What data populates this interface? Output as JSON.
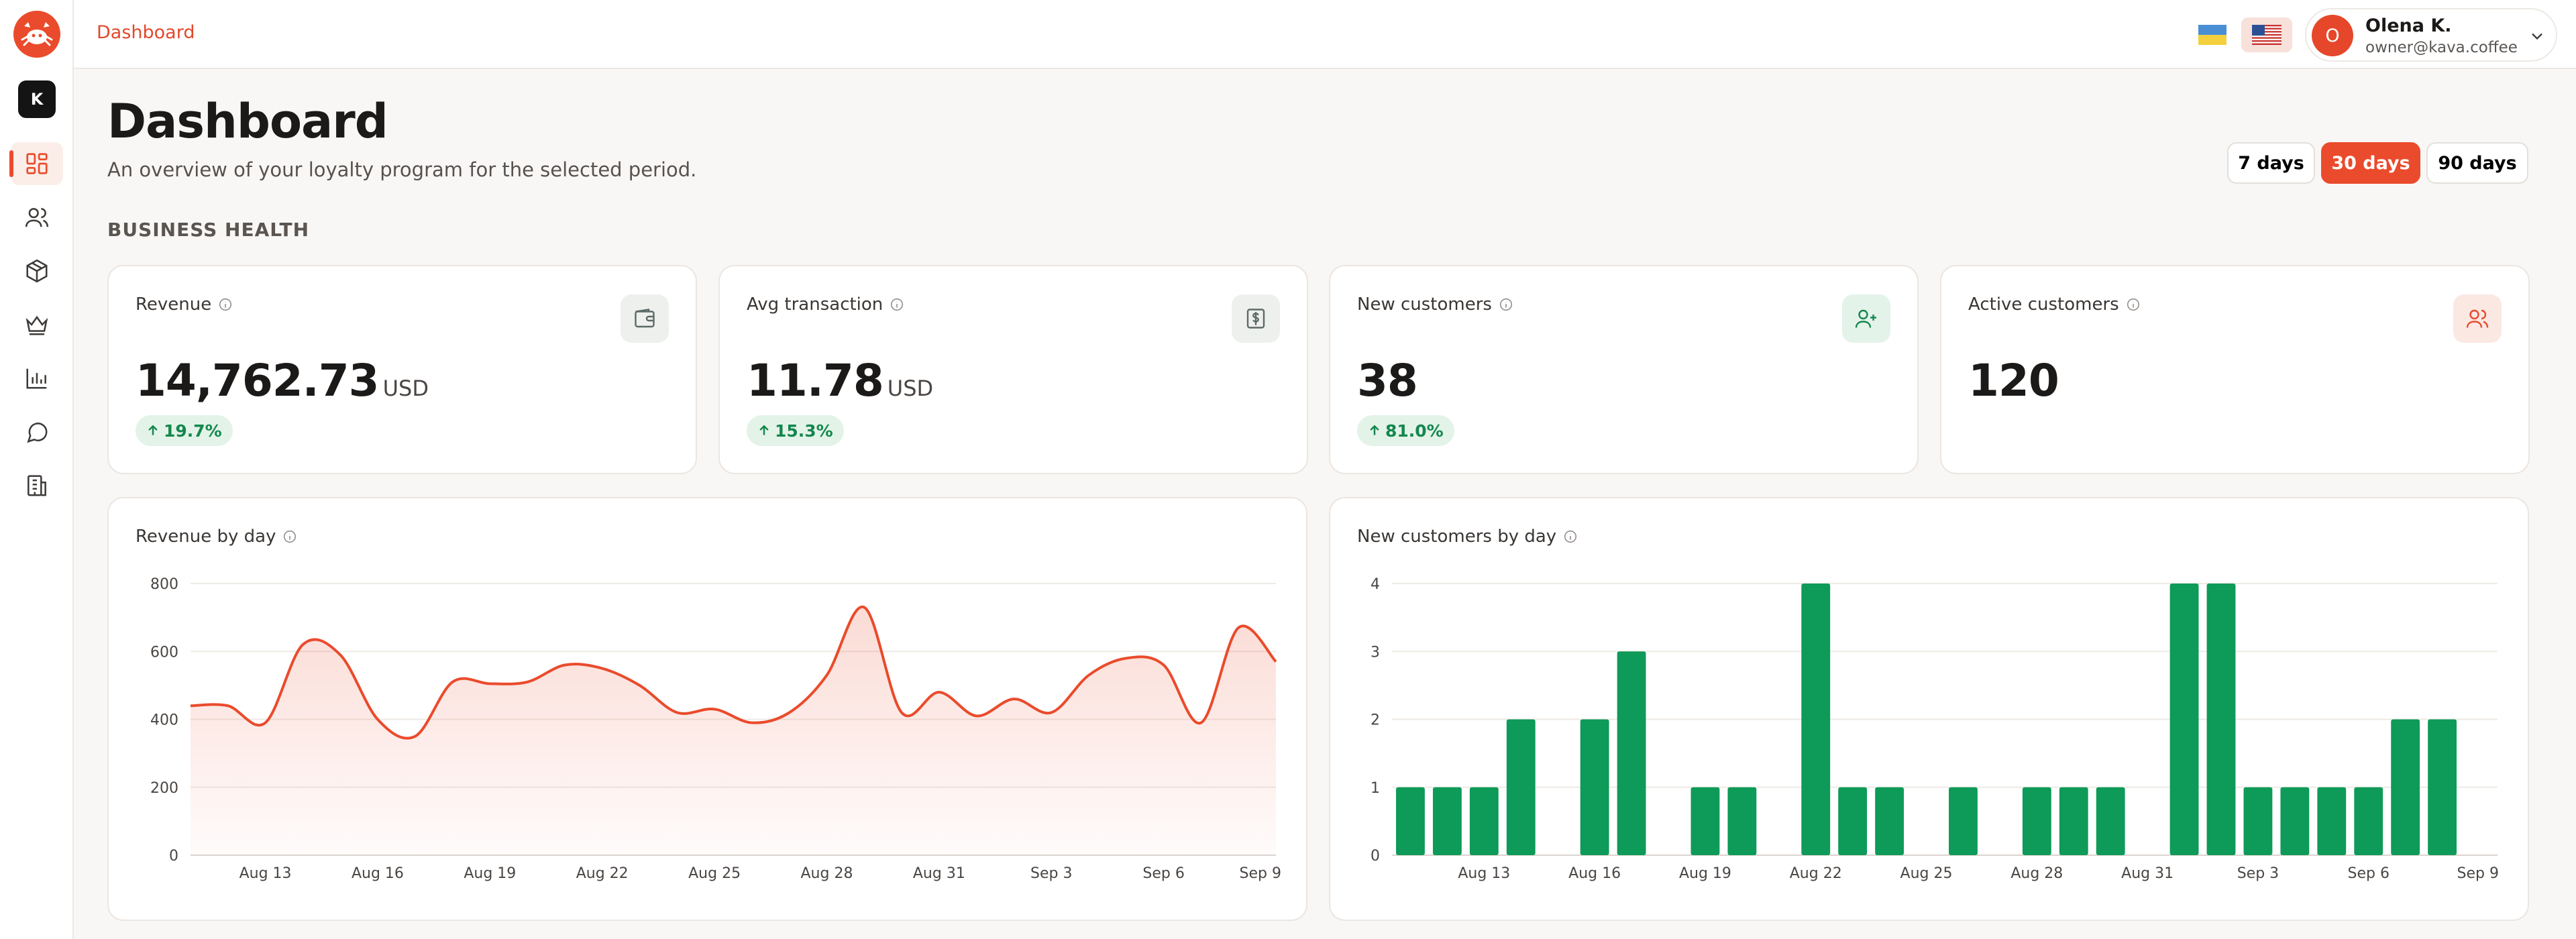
{
  "app": {
    "breadcrumb": "Dashboard"
  },
  "user": {
    "initial": "O",
    "name": "Olena K.",
    "email": "owner@kava.coffee"
  },
  "workspace": {
    "initial": "K"
  },
  "sidebar": {
    "items": [
      {
        "name": "dashboard",
        "icon": "dashboard-icon",
        "active": true
      },
      {
        "name": "customers",
        "icon": "users-icon"
      },
      {
        "name": "products",
        "icon": "box-icon"
      },
      {
        "name": "loyalty",
        "icon": "crown-icon"
      },
      {
        "name": "analytics",
        "icon": "bar-chart-icon"
      },
      {
        "name": "messages",
        "icon": "chat-icon"
      },
      {
        "name": "locations",
        "icon": "building-icon"
      }
    ]
  },
  "header": {
    "title": "Dashboard",
    "subtitle": "An overview of your loyalty program for the selected period.",
    "ranges": [
      "7 days",
      "30 days",
      "90 days"
    ],
    "active_range": "30 days"
  },
  "section": {
    "title": "BUSINESS HEALTH"
  },
  "kpis": [
    {
      "label": "Revenue",
      "value": "14,762.73",
      "unit": "USD",
      "delta": "19.7%",
      "icon": "wallet-icon"
    },
    {
      "label": "Avg transaction",
      "value": "11.78",
      "unit": "USD",
      "delta": "15.3%",
      "icon": "receipt-icon"
    },
    {
      "label": "New customers",
      "value": "38",
      "unit": "",
      "delta": "81.0%",
      "icon": "user-plus-icon"
    },
    {
      "label": "Active customers",
      "value": "120",
      "unit": "",
      "delta": "",
      "icon": "users-icon"
    }
  ],
  "colors": {
    "accent": "#ea4b2c",
    "positive": "#14874e",
    "bar": "#0e9a58"
  },
  "chart_data": [
    {
      "type": "area",
      "title": "Revenue by day",
      "x": [
        "Aug 11",
        "Aug 12",
        "Aug 13",
        "Aug 14",
        "Aug 15",
        "Aug 16",
        "Aug 17",
        "Aug 18",
        "Aug 19",
        "Aug 20",
        "Aug 21",
        "Aug 22",
        "Aug 23",
        "Aug 24",
        "Aug 25",
        "Aug 26",
        "Aug 27",
        "Aug 28",
        "Aug 29",
        "Aug 30",
        "Aug 31",
        "Sep 1",
        "Sep 2",
        "Sep 3",
        "Sep 4",
        "Sep 5",
        "Sep 6",
        "Sep 7",
        "Sep 8",
        "Sep 9"
      ],
      "values": [
        440,
        440,
        390,
        620,
        590,
        400,
        350,
        510,
        505,
        510,
        560,
        550,
        500,
        420,
        430,
        390,
        420,
        530,
        730,
        420,
        480,
        410,
        460,
        420,
        530,
        580,
        560,
        390,
        670,
        570
      ],
      "ylim": [
        0,
        800
      ],
      "yticks": [
        0,
        200,
        400,
        600,
        800
      ],
      "xticks": [
        "Aug 13",
        "Aug 16",
        "Aug 19",
        "Aug 22",
        "Aug 25",
        "Aug 28",
        "Aug 31",
        "Sep 3",
        "Sep 6",
        "Sep 9"
      ],
      "grid": true
    },
    {
      "type": "bar",
      "title": "New customers by day",
      "categories": [
        "Aug 11",
        "Aug 12",
        "Aug 13",
        "Aug 14",
        "Aug 15",
        "Aug 16",
        "Aug 17",
        "Aug 18",
        "Aug 19",
        "Aug 20",
        "Aug 21",
        "Aug 22",
        "Aug 23",
        "Aug 24",
        "Aug 25",
        "Aug 26",
        "Aug 27",
        "Aug 28",
        "Aug 29",
        "Aug 30",
        "Aug 31",
        "Sep 1",
        "Sep 2",
        "Sep 3",
        "Sep 4",
        "Sep 5",
        "Sep 6",
        "Sep 7",
        "Sep 8",
        "Sep 9"
      ],
      "values": [
        1,
        1,
        1,
        2,
        0,
        2,
        3,
        0,
        1,
        1,
        0,
        4,
        1,
        1,
        0,
        1,
        0,
        1,
        1,
        1,
        0,
        4,
        4,
        1,
        1,
        1,
        1,
        2,
        2,
        0
      ],
      "ylim": [
        0,
        4
      ],
      "yticks": [
        0,
        1,
        2,
        3,
        4
      ],
      "xticks": [
        "Aug 13",
        "Aug 16",
        "Aug 19",
        "Aug 22",
        "Aug 25",
        "Aug 28",
        "Aug 31",
        "Sep 3",
        "Sep 6",
        "Sep 9"
      ],
      "grid": true
    }
  ]
}
